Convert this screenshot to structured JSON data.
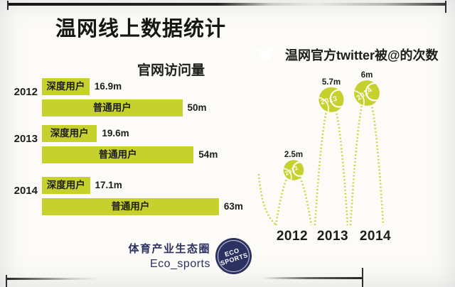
{
  "title": "温网线上数据统计",
  "colors": {
    "accent": "#c6d12d",
    "dash": "#c9d438",
    "twitter_blue": "#37a4da",
    "navy": "#2b3161",
    "text": "#1d1d1b"
  },
  "footer": {
    "brand_cn": "体育产业生态圈",
    "brand_en": "Eco_sports",
    "badge_text": "ECO SPORTS"
  },
  "chart_data": [
    {
      "type": "bar",
      "orientation": "horizontal",
      "title": "官网访问量",
      "unit": "millions of visits",
      "categories": [
        "2012",
        "2013",
        "2014"
      ],
      "series": [
        {
          "name": "深度用户",
          "values": [
            16.9,
            19.6,
            17.1
          ],
          "labels": [
            "16.9m",
            "19.6m",
            "17.1m"
          ]
        },
        {
          "name": "普通用户",
          "values": [
            50,
            54,
            63
          ],
          "labels": [
            "50m",
            "54m",
            "63m"
          ]
        }
      ],
      "xlim": [
        0,
        63
      ],
      "grid": false,
      "legend": "labels printed inside bars",
      "bar_color": "#c6d12d"
    },
    {
      "type": "scatter",
      "subtype": "bouncing-tennis-ball-lollipop",
      "title": "温网官方twitter被@的次数",
      "unit": "millions of mentions",
      "categories": [
        "2012",
        "2013",
        "2014"
      ],
      "values": [
        2.5,
        5.7,
        6
      ],
      "value_labels": [
        "2.5m",
        "5.7m",
        "6m"
      ],
      "ylim": [
        0,
        6.5
      ],
      "grid": false,
      "marker": "tennis ball with year printed on it, dotted bounce trajectory",
      "ball_color": "#c6d12d"
    }
  ]
}
